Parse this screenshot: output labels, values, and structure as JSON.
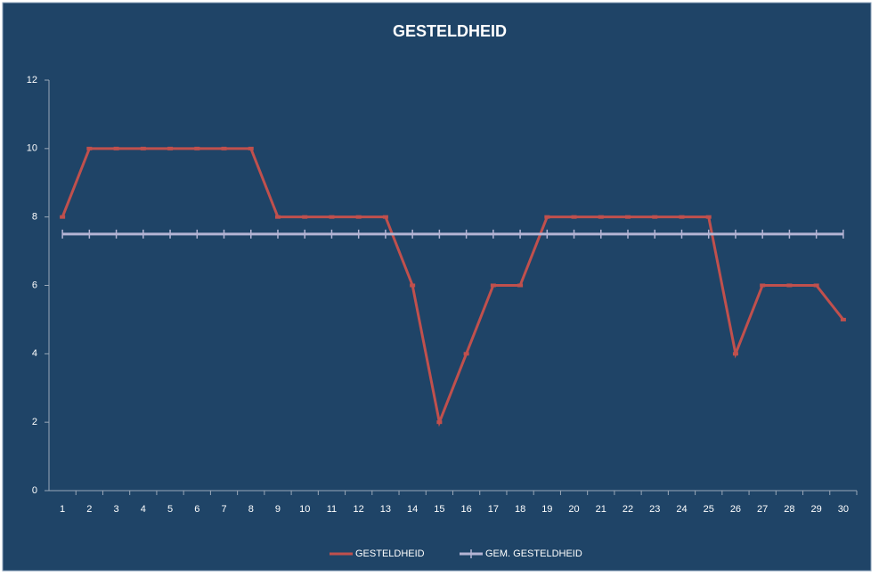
{
  "chart_data": {
    "type": "line",
    "title": "GESTELDHEID",
    "categories": [
      "1",
      "2",
      "3",
      "4",
      "5",
      "6",
      "7",
      "8",
      "9",
      "10",
      "11",
      "12",
      "13",
      "14",
      "15",
      "16",
      "17",
      "18",
      "19",
      "20",
      "21",
      "22",
      "23",
      "24",
      "25",
      "26",
      "27",
      "28",
      "29",
      "30"
    ],
    "series": [
      {
        "name": "GESTELDHEID",
        "color": "#c0504d",
        "values": [
          8,
          10,
          10,
          10,
          10,
          10,
          10,
          10,
          8,
          8,
          8,
          8,
          8,
          6,
          2,
          4,
          6,
          6,
          8,
          8,
          8,
          8,
          8,
          8,
          8,
          4,
          6,
          6,
          6,
          5
        ]
      },
      {
        "name": "GEM. GESTELDHEID",
        "color": "#b4b4d4",
        "values": [
          7.5,
          7.5,
          7.5,
          7.5,
          7.5,
          7.5,
          7.5,
          7.5,
          7.5,
          7.5,
          7.5,
          7.5,
          7.5,
          7.5,
          7.5,
          7.5,
          7.5,
          7.5,
          7.5,
          7.5,
          7.5,
          7.5,
          7.5,
          7.5,
          7.5,
          7.5,
          7.5,
          7.5,
          7.5,
          7.5
        ]
      }
    ],
    "ylim": [
      0,
      12
    ],
    "yticks": [
      0,
      2,
      4,
      6,
      8,
      10,
      12
    ],
    "legend": "bottom"
  }
}
